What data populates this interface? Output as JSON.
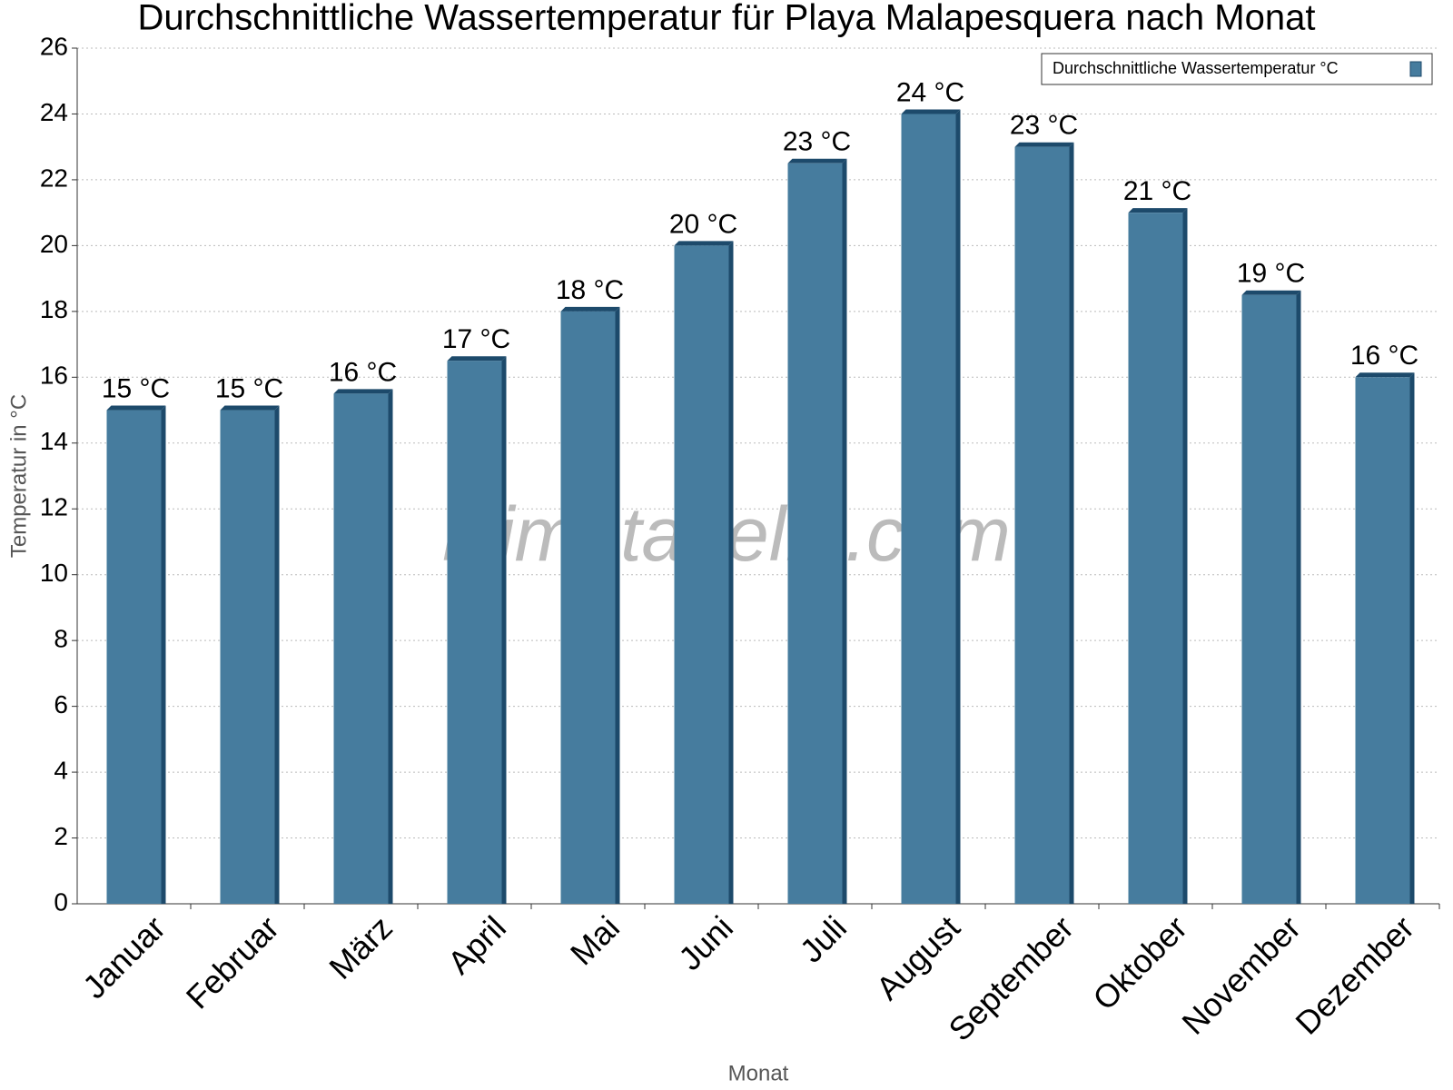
{
  "chart_data": {
    "type": "bar",
    "title": "Durchschnittliche Wassertemperatur für Playa Malapesquera nach Monat",
    "x_label": "Monat",
    "y_label": "Temperatur in °C",
    "watermark": "klimatabelle.com",
    "categories": [
      "Januar",
      "Februar",
      "März",
      "April",
      "Mai",
      "Juni",
      "Juli",
      "August",
      "September",
      "Oktober",
      "November",
      "Dezember"
    ],
    "series": [
      {
        "name": "Durchschnittliche Wassertemperatur °C",
        "color": "#467c9e",
        "values": [
          15,
          15,
          15.5,
          16.5,
          18,
          20,
          22.5,
          24,
          23,
          21,
          18.5,
          16
        ],
        "value_labels": [
          "15 °C",
          "15 °C",
          "16 °C",
          "17 °C",
          "18 °C",
          "20 °C",
          "23 °C",
          "24 °C",
          "23 °C",
          "21 °C",
          "19 °C",
          "16 °C"
        ]
      }
    ],
    "ylim": [
      0,
      26
    ],
    "yticks": [
      0,
      2,
      4,
      6,
      8,
      10,
      12,
      14,
      16,
      18,
      20,
      22,
      24,
      26
    ],
    "grid": true,
    "legend": "top-right"
  }
}
